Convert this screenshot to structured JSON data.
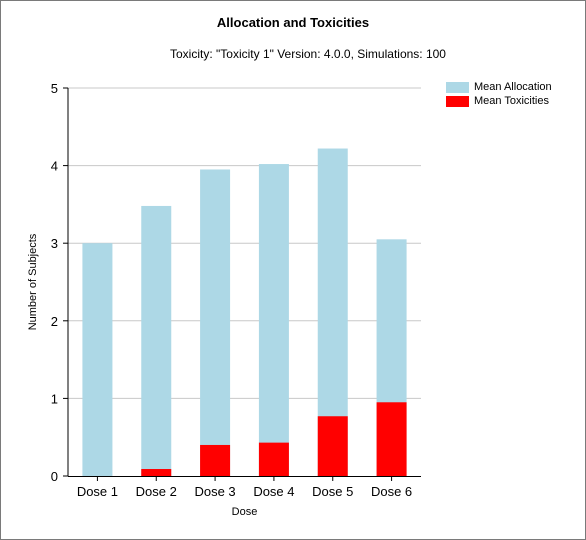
{
  "chart_data": {
    "type": "bar",
    "stacked": false,
    "overlay": true,
    "title": "Allocation and Toxicities",
    "subtitle": "Toxicity: \"Toxicity 1\" Version: 4.0.0, Simulations: 100",
    "xlabel": "Dose",
    "ylabel": "Number of Subjects",
    "categories": [
      "Dose 1",
      "Dose 2",
      "Dose 3",
      "Dose 4",
      "Dose 5",
      "Dose 6"
    ],
    "ylim": [
      0,
      5
    ],
    "yticks": [
      "0",
      "1",
      "2",
      "3",
      "4",
      "5"
    ],
    "grid": true,
    "legend_position": "top-right",
    "series": [
      {
        "name": "Mean Allocation",
        "color": "#add8e6",
        "values": [
          3.0,
          3.48,
          3.95,
          4.02,
          4.22,
          3.05
        ]
      },
      {
        "name": "Mean Toxicities",
        "color": "#ff0000",
        "values": [
          0.0,
          0.09,
          0.4,
          0.43,
          0.77,
          0.95
        ]
      }
    ]
  }
}
